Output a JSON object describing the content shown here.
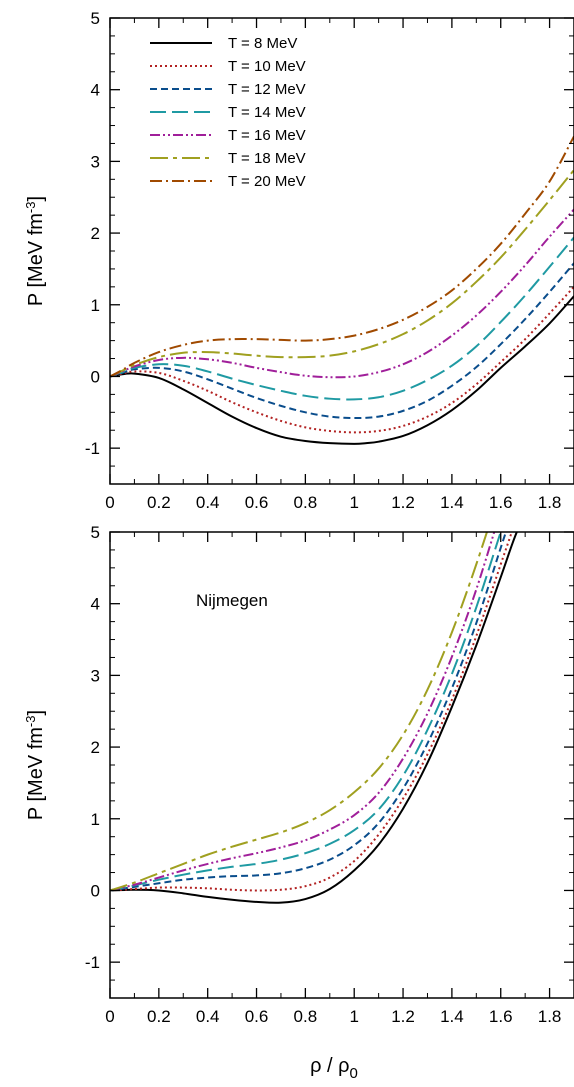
{
  "chart_data": [
    {
      "type": "line",
      "title": "",
      "xlabel": "",
      "ylabel": "P [MeV fm",
      "ylabel_sup": "-3",
      "ylabel_close": "]",
      "xlim": [
        0,
        1.9
      ],
      "ylim": [
        -1.5,
        5
      ],
      "xticks": [
        "0",
        "0.2",
        "0.4",
        "0.6",
        "0.8",
        "1",
        "1.2",
        "1.4",
        "1.6",
        "1.8"
      ],
      "yticks": [
        "-1",
        "0",
        "1",
        "2",
        "3",
        "4",
        "5"
      ],
      "legend_position": "top-left",
      "annotation": "",
      "series": [
        {
          "name": "T = 8 MeV",
          "color": "#000000",
          "dash": "solid",
          "x": [
            0,
            0.05,
            0.1,
            0.2,
            0.3,
            0.4,
            0.5,
            0.6,
            0.7,
            0.8,
            0.9,
            1.0,
            1.05,
            1.1,
            1.2,
            1.3,
            1.4,
            1.5,
            1.6,
            1.7,
            1.8,
            1.9
          ],
          "y": [
            0,
            0.03,
            0.04,
            -0.02,
            -0.18,
            -0.37,
            -0.56,
            -0.72,
            -0.84,
            -0.9,
            -0.93,
            -0.94,
            -0.93,
            -0.91,
            -0.83,
            -0.68,
            -0.47,
            -0.2,
            0.12,
            0.42,
            0.74,
            1.12
          ]
        },
        {
          "name": "T = 10 MeV",
          "color": "#b22222",
          "dash": "dotted",
          "x": [
            0,
            0.05,
            0.1,
            0.2,
            0.3,
            0.4,
            0.5,
            0.6,
            0.7,
            0.8,
            0.9,
            1.0,
            1.1,
            1.2,
            1.3,
            1.4,
            1.5,
            1.6,
            1.7,
            1.8,
            1.9
          ],
          "y": [
            0,
            0.04,
            0.07,
            0.05,
            -0.06,
            -0.2,
            -0.36,
            -0.5,
            -0.62,
            -0.71,
            -0.76,
            -0.78,
            -0.76,
            -0.69,
            -0.56,
            -0.37,
            -0.11,
            0.2,
            0.52,
            0.88,
            1.25
          ]
        },
        {
          "name": "T = 12 MeV",
          "color": "#0a4d8c",
          "dash": "dashed",
          "x": [
            0,
            0.05,
            0.1,
            0.2,
            0.3,
            0.4,
            0.5,
            0.6,
            0.7,
            0.8,
            0.9,
            1.0,
            1.1,
            1.2,
            1.3,
            1.4,
            1.5,
            1.6,
            1.7,
            1.8,
            1.9
          ],
          "y": [
            0,
            0.05,
            0.1,
            0.12,
            0.07,
            -0.04,
            -0.17,
            -0.3,
            -0.41,
            -0.5,
            -0.56,
            -0.58,
            -0.56,
            -0.48,
            -0.34,
            -0.13,
            0.13,
            0.45,
            0.8,
            1.18,
            1.58
          ]
        },
        {
          "name": "T = 14 MeV",
          "color": "#1f9aa3",
          "dash": "longdash",
          "x": [
            0,
            0.05,
            0.1,
            0.2,
            0.3,
            0.4,
            0.5,
            0.6,
            0.7,
            0.8,
            0.9,
            1.0,
            1.1,
            1.2,
            1.3,
            1.4,
            1.5,
            1.6,
            1.7,
            1.8,
            1.9
          ],
          "y": [
            0,
            0.06,
            0.12,
            0.17,
            0.15,
            0.07,
            -0.03,
            -0.12,
            -0.2,
            -0.27,
            -0.31,
            -0.32,
            -0.29,
            -0.2,
            -0.05,
            0.15,
            0.42,
            0.76,
            1.13,
            1.53,
            1.94
          ]
        },
        {
          "name": "T = 16 MeV",
          "color": "#a01f9a",
          "dash": "dashdotdot",
          "x": [
            0,
            0.05,
            0.1,
            0.2,
            0.3,
            0.4,
            0.5,
            0.6,
            0.7,
            0.8,
            0.9,
            1.0,
            1.1,
            1.2,
            1.3,
            1.4,
            1.5,
            1.6,
            1.7,
            1.8,
            1.9
          ],
          "y": [
            0,
            0.07,
            0.14,
            0.23,
            0.26,
            0.24,
            0.19,
            0.12,
            0.06,
            0.01,
            -0.01,
            0.0,
            0.06,
            0.17,
            0.34,
            0.57,
            0.85,
            1.18,
            1.55,
            1.95,
            2.33
          ]
        },
        {
          "name": "T = 18 MeV",
          "color": "#a0a020",
          "dash": "dashlong",
          "x": [
            0,
            0.05,
            0.1,
            0.2,
            0.3,
            0.4,
            0.5,
            0.6,
            0.7,
            0.8,
            0.9,
            1.0,
            1.1,
            1.2,
            1.3,
            1.4,
            1.5,
            1.6,
            1.7,
            1.8,
            1.9
          ],
          "y": [
            0,
            0.08,
            0.16,
            0.27,
            0.33,
            0.34,
            0.32,
            0.29,
            0.27,
            0.27,
            0.29,
            0.35,
            0.45,
            0.59,
            0.78,
            1.02,
            1.32,
            1.66,
            2.05,
            2.46,
            2.88
          ]
        },
        {
          "name": "T = 20 MeV",
          "color": "#a04a00",
          "dash": "dashdot",
          "x": [
            0,
            0.05,
            0.1,
            0.2,
            0.3,
            0.4,
            0.5,
            0.6,
            0.7,
            0.8,
            0.9,
            1.0,
            1.1,
            1.2,
            1.3,
            1.4,
            1.5,
            1.6,
            1.7,
            1.8,
            1.9
          ],
          "y": [
            0,
            0.09,
            0.19,
            0.34,
            0.44,
            0.5,
            0.52,
            0.52,
            0.51,
            0.5,
            0.52,
            0.57,
            0.66,
            0.79,
            0.97,
            1.2,
            1.5,
            1.85,
            2.27,
            2.72,
            3.35
          ]
        }
      ]
    },
    {
      "type": "line",
      "title": "",
      "xlabel": "ρ / ρ",
      "xlabel_sub": "0",
      "ylabel": "P [MeV fm",
      "ylabel_sup": "-3",
      "ylabel_close": "]",
      "xlim": [
        0,
        1.9
      ],
      "ylim": [
        -1.5,
        5
      ],
      "xticks": [
        "0",
        "0.2",
        "0.4",
        "0.6",
        "0.8",
        "1",
        "1.2",
        "1.4",
        "1.6",
        "1.8"
      ],
      "yticks": [
        "-1",
        "0",
        "1",
        "2",
        "3",
        "4",
        "5"
      ],
      "annotation": "Nijmegen",
      "series": [
        {
          "name": "T = 8 MeV",
          "color": "#000000",
          "dash": "solid",
          "x": [
            0,
            0.1,
            0.2,
            0.3,
            0.4,
            0.5,
            0.6,
            0.7,
            0.8,
            0.9,
            1.0,
            1.1,
            1.2,
            1.3,
            1.4,
            1.5,
            1.6,
            1.65,
            1.7,
            1.75
          ],
          "y": [
            0,
            0.01,
            0.0,
            -0.04,
            -0.09,
            -0.13,
            -0.16,
            -0.17,
            -0.12,
            0.02,
            0.28,
            0.64,
            1.14,
            1.78,
            2.56,
            3.42,
            4.37,
            4.86,
            5.3,
            5.8
          ]
        },
        {
          "name": "T = 10 MeV",
          "color": "#b22222",
          "dash": "dotted",
          "x": [
            0,
            0.1,
            0.2,
            0.3,
            0.4,
            0.5,
            0.6,
            0.7,
            0.8,
            0.9,
            1.0,
            1.1,
            1.2,
            1.3,
            1.4,
            1.5,
            1.6,
            1.65,
            1.7
          ],
          "y": [
            0,
            0.02,
            0.04,
            0.04,
            0.03,
            0.01,
            0.0,
            0.01,
            0.06,
            0.18,
            0.41,
            0.78,
            1.28,
            1.9,
            2.66,
            3.55,
            4.55,
            5.05,
            5.6
          ]
        },
        {
          "name": "T = 12 MeV",
          "color": "#0a4d8c",
          "dash": "dashed",
          "x": [
            0,
            0.1,
            0.2,
            0.3,
            0.4,
            0.5,
            0.6,
            0.7,
            0.8,
            0.9,
            1.0,
            1.1,
            1.2,
            1.3,
            1.4,
            1.5,
            1.6,
            1.65
          ],
          "y": [
            0,
            0.05,
            0.1,
            0.15,
            0.18,
            0.2,
            0.21,
            0.24,
            0.31,
            0.43,
            0.63,
            0.94,
            1.42,
            2.05,
            2.82,
            3.73,
            4.78,
            5.3
          ]
        },
        {
          "name": "T = 14 MeV",
          "color": "#1f9aa3",
          "dash": "longdash",
          "x": [
            0,
            0.1,
            0.2,
            0.3,
            0.4,
            0.5,
            0.6,
            0.7,
            0.8,
            0.9,
            1.0,
            1.1,
            1.2,
            1.3,
            1.4,
            1.5,
            1.6,
            1.65
          ],
          "y": [
            0,
            0.07,
            0.15,
            0.22,
            0.28,
            0.33,
            0.37,
            0.43,
            0.52,
            0.65,
            0.84,
            1.13,
            1.6,
            2.24,
            3.02,
            3.95,
            5.0,
            5.5
          ]
        },
        {
          "name": "T = 16 MeV",
          "color": "#a01f9a",
          "dash": "dashdotdot",
          "x": [
            0,
            0.1,
            0.2,
            0.3,
            0.4,
            0.5,
            0.6,
            0.7,
            0.8,
            0.9,
            1.0,
            1.1,
            1.2,
            1.3,
            1.4,
            1.5,
            1.6
          ],
          "y": [
            0,
            0.08,
            0.18,
            0.28,
            0.37,
            0.45,
            0.52,
            0.6,
            0.7,
            0.85,
            1.05,
            1.36,
            1.84,
            2.47,
            3.26,
            4.2,
            5.3
          ]
        },
        {
          "name": "T = 18 MeV",
          "color": "#a0a020",
          "dash": "dashlong",
          "x": [
            0,
            0.1,
            0.2,
            0.3,
            0.4,
            0.5,
            0.6,
            0.7,
            0.8,
            0.9,
            1.0,
            1.1,
            1.2,
            1.3,
            1.4,
            1.5,
            1.6
          ],
          "y": [
            0,
            0.11,
            0.24,
            0.37,
            0.5,
            0.61,
            0.71,
            0.81,
            0.94,
            1.12,
            1.37,
            1.7,
            2.17,
            2.8,
            3.6,
            4.55,
            5.6
          ]
        }
      ]
    }
  ]
}
